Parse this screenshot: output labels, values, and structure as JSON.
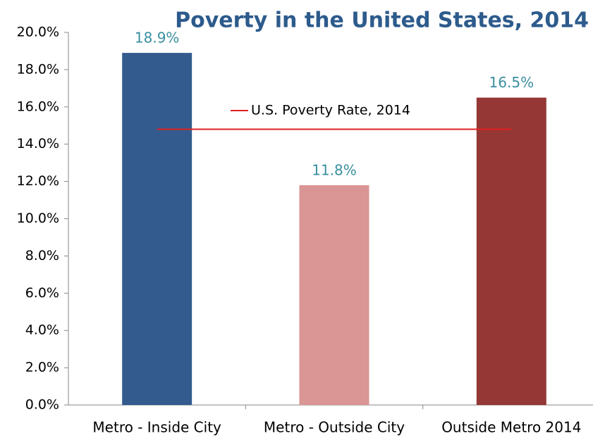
{
  "chart_data": {
    "type": "bar",
    "title": "Poverty in the United States, 2014",
    "categories": [
      "Metro - Inside City",
      "Metro - Outside City",
      "Outside Metro 2014"
    ],
    "values": [
      18.9,
      11.8,
      16.5
    ],
    "value_labels": [
      "18.9%",
      "11.8%",
      "16.5%"
    ],
    "colors": [
      "#335b8e",
      "#d99694",
      "#953735"
    ],
    "reference_line": {
      "name": "U.S. Poverty Rate, 2014",
      "color": "#e02020",
      "value": 14.8
    },
    "ylim": [
      0,
      20
    ],
    "yticks": [
      {
        "value": 0,
        "label": "0.0%"
      },
      {
        "value": 2,
        "label": "2.0%"
      },
      {
        "value": 4,
        "label": "4.0%"
      },
      {
        "value": 6,
        "label": "6.0%"
      },
      {
        "value": 8,
        "label": "8.0%"
      },
      {
        "value": 10,
        "label": "10.0%"
      },
      {
        "value": 12,
        "label": "12.0%"
      },
      {
        "value": 14,
        "label": "14.0%"
      },
      {
        "value": 16,
        "label": "16.0%"
      },
      {
        "value": 18,
        "label": "18.0%"
      },
      {
        "value": 20,
        "label": "20.0%"
      }
    ],
    "grid": false
  }
}
